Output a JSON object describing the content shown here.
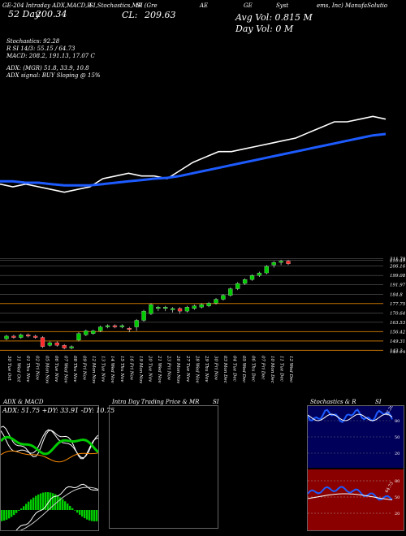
{
  "header": {
    "top_line": "GE-204 Intraday ADX,MACD,B",
    "top_line2": "SI,Stochastics,MR",
    "top_line3": "SI (Gre",
    "top_line4": "AE",
    "top_line5": "GE",
    "top_line6": "Syst",
    "top_line7": "ems, Inc) ManufaSolutio",
    "day_label": "52 Day",
    "day_value": "200.34",
    "close_label": "CL:",
    "close_value": "209.63",
    "avg_vol_label": "Avg Vol: 0.815  M",
    "day_vol_label": "Day Vol: 0   M"
  },
  "indicators": {
    "stochastics": "Stochastics: 92.28",
    "si": "R                SI 14/3: 55.15 / 64.73",
    "macd": "MACD: 208.2, 191.13, 17.07 C",
    "adx": "ADX:                (MGR) 51.8, 33.9, 10.8",
    "adx_signal": "ADX  signal:                   BUY Sloping @ 15%"
  },
  "price_axis": [
    "211.79",
    "210.49",
    "206.16",
    "199.08",
    "191.97",
    "184.8",
    "177.75",
    "170.64",
    "163.53",
    "156.42",
    "149.31",
    "142.2",
    "142.29"
  ],
  "date_labels": [
    "30 Tue Oct",
    "31 Wed Oct",
    "01 Thu Nov",
    "02 Fri Nov",
    "05 Mon Nov",
    "06 Tue Nov",
    "07 Wed Nov",
    "08 Thu Nov",
    "09 Fri Nov",
    "12 Mon Nov",
    "13 Tue Nov",
    "14 Wed Nov",
    "15 Thu Nov",
    "16 Fri Nov",
    "19 Mon Nov",
    "20 Tue Nov",
    "21 Wed Nov",
    "23 Fri Nov",
    "26 Mon Nov",
    "27 Tue Nov",
    "28 Wed Nov",
    "29 Thu Nov",
    "30 Fri Nov",
    "03 Mon Dec",
    "04 Tue Dec",
    "05 Wed Dec",
    "06 Thu Dec",
    "07 Fri Dec",
    "10 Mon Dec",
    "11 Tue Dec",
    "12 Wed Dec"
  ],
  "panels": {
    "adx_title": "ADX  & MACD",
    "adx_values": "ADX: 51.75 +DY: 33.91 -DY: 10.75",
    "intraday_title": "Intra  Day Trading Price  & MR",
    "intraday_title2": "SI",
    "stoch_title": "Stochastics & R",
    "stoch_title2": "SI",
    "stoch_ticks": [
      "80",
      "50",
      "20"
    ],
    "rsi_ticks": [
      "80",
      "50",
      "20"
    ],
    "stoch_last": "92.28",
    "rsi_last": "64.73"
  },
  "colors": {
    "bull": "#00cc00",
    "bear": "#ff2a2a",
    "ma_blue": "#1d5bff",
    "orange_line": "#ff8c00"
  },
  "chart_data": [
    {
      "type": "line",
      "title": "",
      "series": [
        {
          "name": "Price",
          "values": [
            187,
            186,
            187,
            186,
            185,
            184,
            185,
            186,
            189,
            190,
            191,
            190,
            190,
            189,
            192,
            195,
            197,
            199,
            199,
            200,
            201,
            202,
            203,
            204,
            206,
            208,
            210,
            210,
            211,
            212,
            211
          ]
        },
        {
          "name": "",
          "values": [
            188,
            188,
            187.5,
            187.5,
            187,
            186.5,
            186.5,
            186.5,
            187,
            187.5,
            188,
            188.5,
            189,
            189.3,
            190,
            191,
            192,
            193,
            194,
            195,
            196,
            197,
            198,
            199,
            200,
            201,
            202,
            203,
            204,
            205,
            205.5
          ]
        }
      ],
      "categories_ref": "date_labels"
    },
    {
      "type": "bar",
      "title": "",
      "candles": [
        {
          "o": 151,
          "c": 153,
          "h": 154,
          "l": 150
        },
        {
          "o": 153,
          "c": 152,
          "h": 154,
          "l": 151
        },
        {
          "o": 152,
          "c": 154,
          "h": 155,
          "l": 151
        },
        {
          "o": 154,
          "c": 153,
          "h": 155,
          "l": 152
        },
        {
          "o": 153,
          "c": 152,
          "h": 154,
          "l": 151
        },
        {
          "o": 152,
          "c": 145,
          "h": 153,
          "l": 144
        },
        {
          "o": 146,
          "c": 148,
          "h": 149,
          "l": 145
        },
        {
          "o": 148,
          "c": 146,
          "h": 149,
          "l": 145
        },
        {
          "o": 146,
          "c": 144,
          "h": 147,
          "l": 143
        },
        {
          "o": 144,
          "c": 145,
          "h": 146,
          "l": 143
        },
        {
          "o": 150,
          "c": 155,
          "h": 156,
          "l": 149
        },
        {
          "o": 154,
          "c": 157,
          "h": 158,
          "l": 153
        },
        {
          "o": 155,
          "c": 157,
          "h": 158,
          "l": 154
        },
        {
          "o": 157,
          "c": 160,
          "h": 161,
          "l": 156
        },
        {
          "o": 160,
          "c": 161,
          "h": 162,
          "l": 159
        },
        {
          "o": 161,
          "c": 160,
          "h": 162,
          "l": 159
        },
        {
          "o": 160,
          "c": 161,
          "h": 162,
          "l": 159
        },
        {
          "o": 159,
          "c": 158,
          "h": 160,
          "l": 156
        },
        {
          "o": 160,
          "c": 165,
          "h": 166,
          "l": 157
        },
        {
          "o": 165,
          "c": 172,
          "h": 173,
          "l": 164
        },
        {
          "o": 170,
          "c": 177,
          "h": 178,
          "l": 169
        },
        {
          "o": 174,
          "c": 175,
          "h": 176,
          "l": 172
        },
        {
          "o": 174,
          "c": 175,
          "h": 176,
          "l": 172
        },
        {
          "o": 173,
          "c": 174,
          "h": 175,
          "l": 171
        },
        {
          "o": 174,
          "c": 172,
          "h": 175,
          "l": 170
        },
        {
          "o": 172,
          "c": 175,
          "h": 176,
          "l": 171
        },
        {
          "o": 174,
          "c": 176,
          "h": 177,
          "l": 173
        },
        {
          "o": 175,
          "c": 177,
          "h": 178,
          "l": 174
        },
        {
          "o": 176,
          "c": 178,
          "h": 179,
          "l": 175
        },
        {
          "o": 178,
          "c": 181,
          "h": 182,
          "l": 177
        },
        {
          "o": 181,
          "c": 184,
          "h": 185,
          "l": 180
        },
        {
          "o": 184,
          "c": 189,
          "h": 190,
          "l": 183
        },
        {
          "o": 189,
          "c": 193,
          "h": 194,
          "l": 188
        },
        {
          "o": 193,
          "c": 196,
          "h": 197,
          "l": 192
        },
        {
          "o": 196,
          "c": 199,
          "h": 200,
          "l": 195
        },
        {
          "o": 199,
          "c": 201,
          "h": 202,
          "l": 198
        },
        {
          "o": 201,
          "c": 206,
          "h": 207,
          "l": 200
        },
        {
          "o": 207,
          "c": 209,
          "h": 210,
          "l": 205
        },
        {
          "o": 209,
          "c": 210,
          "h": 211,
          "l": 207
        },
        {
          "o": 210,
          "c": 208,
          "h": 211,
          "l": 207
        }
      ]
    }
  ]
}
